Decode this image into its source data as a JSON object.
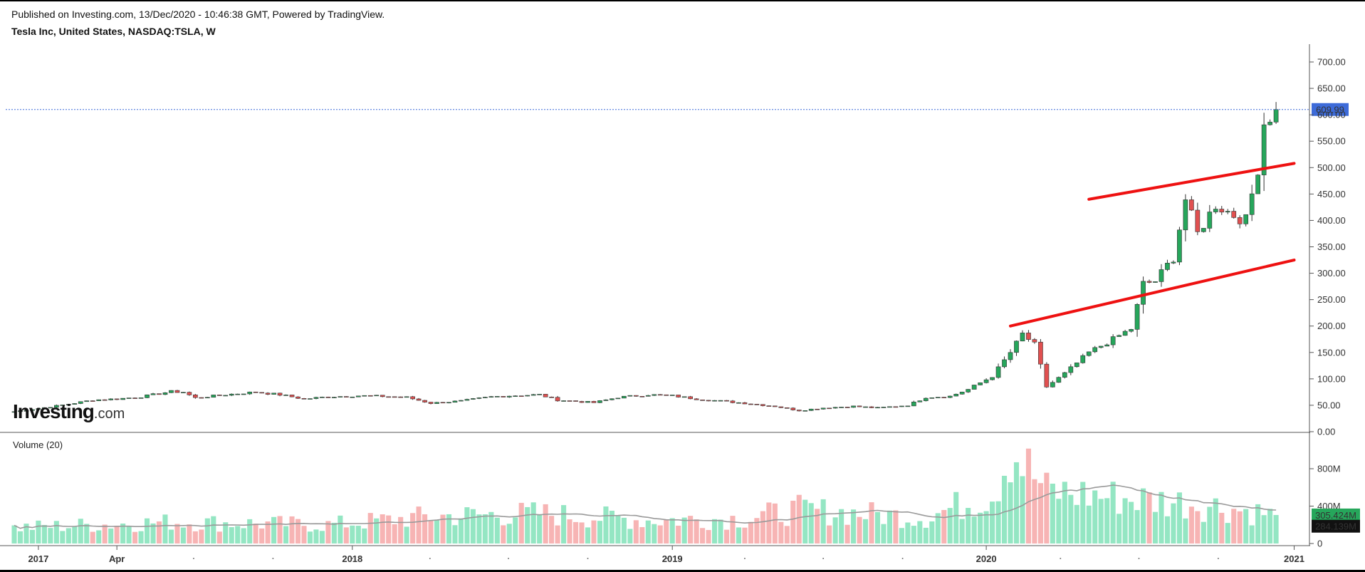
{
  "header": {
    "published": "Published on Investing.com, 13/Dec/2020 - 10:46:38 GMT, Powered by TradingView.",
    "symbol": "Tesla Inc, United States, NASDAQ:TSLA, W"
  },
  "logo": {
    "brand": "Investing",
    "suffix": ".com"
  },
  "volume_panel": {
    "title": "Volume (20)"
  },
  "colors": {
    "up": "#26a65b",
    "down": "#e05050",
    "vol_up": "#94e6c3",
    "vol_down": "#f7b4b4",
    "trendline": "#ee1111",
    "price_tag": "#3d6bd9",
    "vol_tag_up": "#26a65b",
    "vol_tag_ma": "#111111",
    "ma_line": "#9a9a9a"
  },
  "chart_data": [
    {
      "type": "candlestick",
      "title": "Tesla Inc, United States, NASDAQ:TSLA, W",
      "y_ticks": [
        "0.00",
        "50.00",
        "100.00",
        "150.00",
        "200.00",
        "250.00",
        "300.00",
        "350.00",
        "400.00",
        "450.00",
        "500.00",
        "550.00",
        "600.00",
        "650.00",
        "700.00"
      ],
      "ylim": [
        0,
        715
      ],
      "x_tick_labels": [
        "2017",
        "Apr",
        "2018",
        "2019",
        "2020",
        "2021"
      ],
      "last_price": "609.99",
      "trendlines": [
        {
          "name": "upper channel",
          "from": {
            "date": "2020-05-04",
            "value": 440
          },
          "to": {
            "date": "2020-12-28",
            "value": 508
          }
        },
        {
          "name": "lower channel",
          "from": {
            "date": "2020-02-03",
            "value": 200
          },
          "to": {
            "date": "2020-12-28",
            "value": 325
          }
        }
      ],
      "weekly_close_keypoints": [
        [
          "2016-12-05",
          38
        ],
        [
          "2017-01-02",
          44
        ],
        [
          "2017-02-06",
          52
        ],
        [
          "2017-03-06",
          60
        ],
        [
          "2017-04-03",
          62
        ],
        [
          "2017-05-01",
          66
        ],
        [
          "2017-06-05",
          76
        ],
        [
          "2017-06-19",
          75
        ],
        [
          "2017-07-03",
          64
        ],
        [
          "2017-08-07",
          70
        ],
        [
          "2017-09-11",
          75
        ],
        [
          "2017-10-09",
          70
        ],
        [
          "2017-11-06",
          62
        ],
        [
          "2017-12-04",
          66
        ],
        [
          "2018-01-08",
          68
        ],
        [
          "2018-02-05",
          67
        ],
        [
          "2018-03-05",
          65
        ],
        [
          "2018-04-02",
          54
        ],
        [
          "2018-05-07",
          58
        ],
        [
          "2018-06-11",
          66
        ],
        [
          "2018-07-02",
          68
        ],
        [
          "2018-08-06",
          70
        ],
        [
          "2018-08-27",
          60
        ],
        [
          "2018-10-08",
          55
        ],
        [
          "2018-11-05",
          65
        ],
        [
          "2018-12-10",
          70
        ],
        [
          "2019-01-07",
          68
        ],
        [
          "2019-02-04",
          62
        ],
        [
          "2019-03-04",
          58
        ],
        [
          "2019-04-01",
          54
        ],
        [
          "2019-05-06",
          48
        ],
        [
          "2019-06-03",
          40
        ],
        [
          "2019-07-01",
          45
        ],
        [
          "2019-08-05",
          48
        ],
        [
          "2019-09-02",
          45
        ],
        [
          "2019-10-07",
          50
        ],
        [
          "2019-10-28",
          65
        ],
        [
          "2019-11-25",
          67
        ],
        [
          "2019-12-16",
          80
        ],
        [
          "2020-01-13",
          105
        ],
        [
          "2020-02-03",
          150
        ],
        [
          "2020-02-17",
          185
        ],
        [
          "2020-03-02",
          165
        ],
        [
          "2020-03-16",
          85
        ],
        [
          "2020-04-06",
          110
        ],
        [
          "2020-05-04",
          150
        ],
        [
          "2020-06-01",
          175
        ],
        [
          "2020-06-22",
          195
        ],
        [
          "2020-07-06",
          280
        ],
        [
          "2020-07-20",
          285
        ],
        [
          "2020-08-10",
          330
        ],
        [
          "2020-08-24",
          440
        ],
        [
          "2020-09-07",
          375
        ],
        [
          "2020-09-28",
          430
        ],
        [
          "2020-10-19",
          410
        ],
        [
          "2020-11-02",
          400
        ],
        [
          "2020-11-16",
          500
        ],
        [
          "2020-11-23",
          585
        ],
        [
          "2020-12-07",
          609.99
        ]
      ]
    },
    {
      "type": "bar",
      "title": "Volume (20)",
      "y_ticks": [
        "0",
        "400M",
        "800M"
      ],
      "ylim": [
        0,
        1050
      ],
      "units": "M shares",
      "moving_average_period": 20,
      "last_volume": "305.424M",
      "last_ma": "284.139M",
      "volume_keypoints": [
        [
          "2016-12-05",
          170
        ],
        [
          "2017-06-05",
          230
        ],
        [
          "2017-12-04",
          200
        ],
        [
          "2018-04-02",
          290
        ],
        [
          "2018-08-06",
          320
        ],
        [
          "2018-12-10",
          250
        ],
        [
          "2019-04-01",
          270
        ],
        [
          "2019-06-03",
          360
        ],
        [
          "2019-10-28",
          280
        ],
        [
          "2020-01-13",
          530
        ],
        [
          "2020-02-03",
          1020
        ],
        [
          "2020-03-16",
          560
        ],
        [
          "2020-06-22",
          480
        ],
        [
          "2020-09-07",
          430
        ],
        [
          "2020-12-07",
          305
        ]
      ]
    }
  ]
}
